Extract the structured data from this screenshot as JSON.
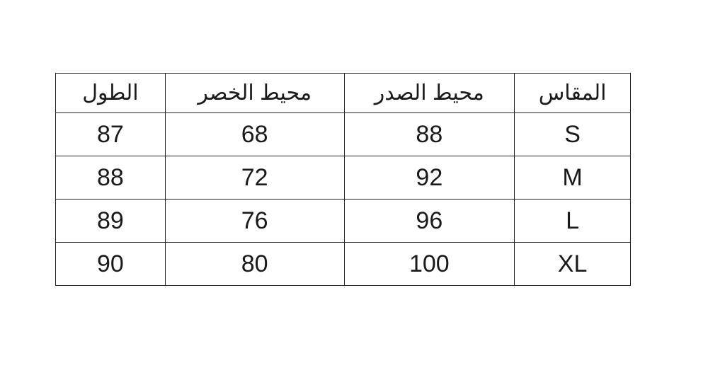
{
  "table": {
    "headers": [
      "المقاس",
      "محيط الصدر",
      "محيط الخصر",
      "الطول"
    ],
    "rows": [
      [
        "S",
        "88",
        "68",
        "87"
      ],
      [
        "M",
        "92",
        "72",
        "88"
      ],
      [
        "L",
        "96",
        "76",
        "89"
      ],
      [
        "XL",
        "100",
        "80",
        "90"
      ]
    ]
  }
}
